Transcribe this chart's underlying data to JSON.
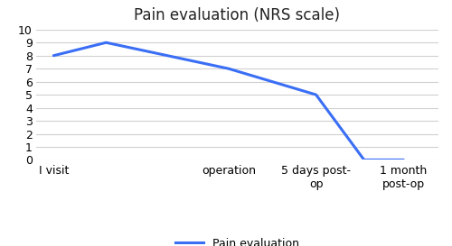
{
  "title": "Pain evaluation (NRS scale)",
  "data_points_x": [
    0,
    0.6,
    2,
    3,
    3.55,
    4
  ],
  "data_points_y": [
    8,
    9,
    7,
    5,
    0,
    0
  ],
  "line_color": "#3A6EF5",
  "line_width": 2.2,
  "legend_label": "Pain evaluation",
  "ylim": [
    0,
    10
  ],
  "xlim": [
    -0.2,
    4.4
  ],
  "yticks": [
    0,
    1,
    2,
    3,
    4,
    5,
    6,
    7,
    8,
    9,
    10
  ],
  "x_tick_positions": [
    0,
    2,
    3,
    4
  ],
  "x_tick_labels": [
    "I visit",
    "operation",
    "5 days post-\nop",
    "1 month\npost-op"
  ],
  "background_color": "#ffffff",
  "grid_color": "#d0d0d0",
  "title_fontsize": 12,
  "tick_fontsize": 9,
  "legend_fontsize": 9
}
